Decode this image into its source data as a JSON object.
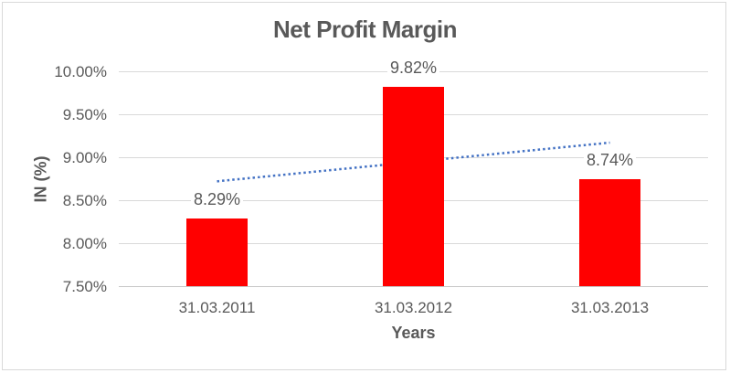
{
  "frame": {
    "background": "#ffffff",
    "border_color": "#d9d9d9"
  },
  "chart_data": {
    "type": "bar",
    "title": "Net Profit Margin",
    "xlabel": "Years",
    "ylabel": "IN (%)",
    "categories": [
      "31.03.2011",
      "31.03.2012",
      "31.03.2013"
    ],
    "values": [
      8.29,
      9.82,
      8.74
    ],
    "value_labels": [
      "8.29%",
      "9.82%",
      "8.74%"
    ],
    "y_ticks": [
      {
        "value": 10.0,
        "label": "10.00%"
      },
      {
        "value": 9.5,
        "label": "9.50%"
      },
      {
        "value": 9.0,
        "label": "9.00%"
      },
      {
        "value": 8.5,
        "label": "8.50%"
      },
      {
        "value": 8.0,
        "label": "8.00%"
      },
      {
        "value": 7.5,
        "label": "7.50%"
      }
    ],
    "ylim": [
      7.5,
      10.0
    ],
    "grid": true,
    "legend": "none",
    "bar_color": "#ff0000",
    "text_color": "#595959",
    "gridline_color": "#d9d9d9",
    "trendline": {
      "type": "linear",
      "style": "dotted",
      "color": "#4472c4",
      "start_value": 8.72,
      "end_value": 9.17
    }
  }
}
